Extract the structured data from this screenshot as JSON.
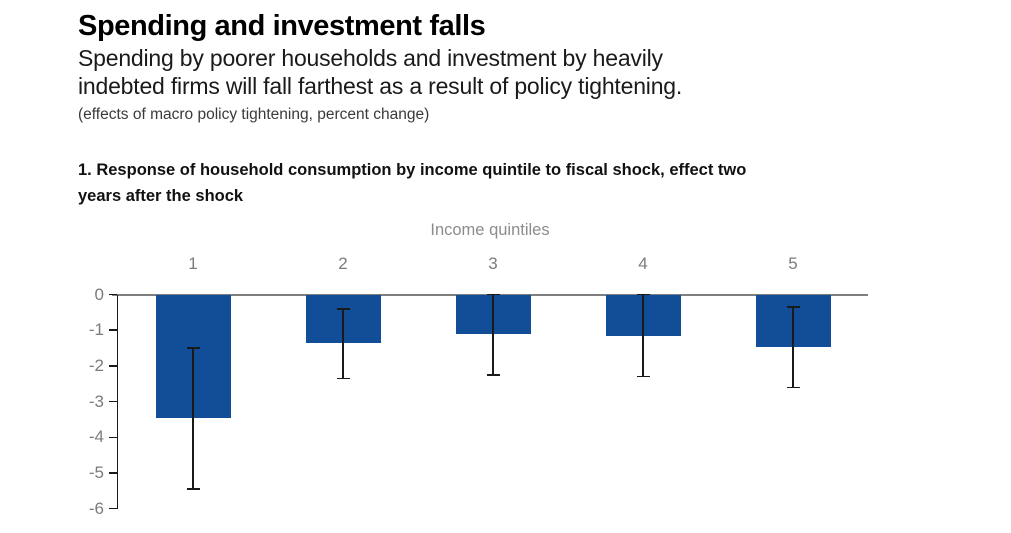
{
  "header": {
    "title": "Spending and investment falls",
    "subtitle_lines": [
      "Spending by poorer households and investment by heavily",
      "indebted firms will fall farthest as a result of policy tightening."
    ],
    "note": "(effects of macro policy tightening, percent change)"
  },
  "panel": {
    "title_lines": [
      "1. Response of household consumption by income quintile to fiscal shock, effect two",
      "years after the shock"
    ]
  },
  "chart_data": {
    "type": "bar",
    "title": "1. Response of household consumption by income quintile to fiscal shock, effect two years after the shock",
    "xlabel": "Income quintiles",
    "ylabel": "",
    "categories": [
      "1",
      "2",
      "3",
      "4",
      "5"
    ],
    "values": [
      -3.45,
      -1.35,
      -1.1,
      -1.15,
      -1.45
    ],
    "error_bars": {
      "upper": [
        -1.5,
        -0.4,
        0,
        0,
        -0.35
      ],
      "lower": [
        -5.45,
        -2.35,
        -2.25,
        -2.3,
        -2.6
      ]
    },
    "ylim": [
      -6,
      0
    ],
    "yticks": [
      0,
      -1,
      -2,
      -3,
      -4,
      -5,
      -6
    ],
    "grid": false,
    "legend": null,
    "colors": {
      "bar": "#114e97",
      "baseline": "#7f7f7f",
      "axis": "#1a1a1a",
      "tick_label": "#7c7c7c",
      "error": "#1a1a1a"
    }
  }
}
